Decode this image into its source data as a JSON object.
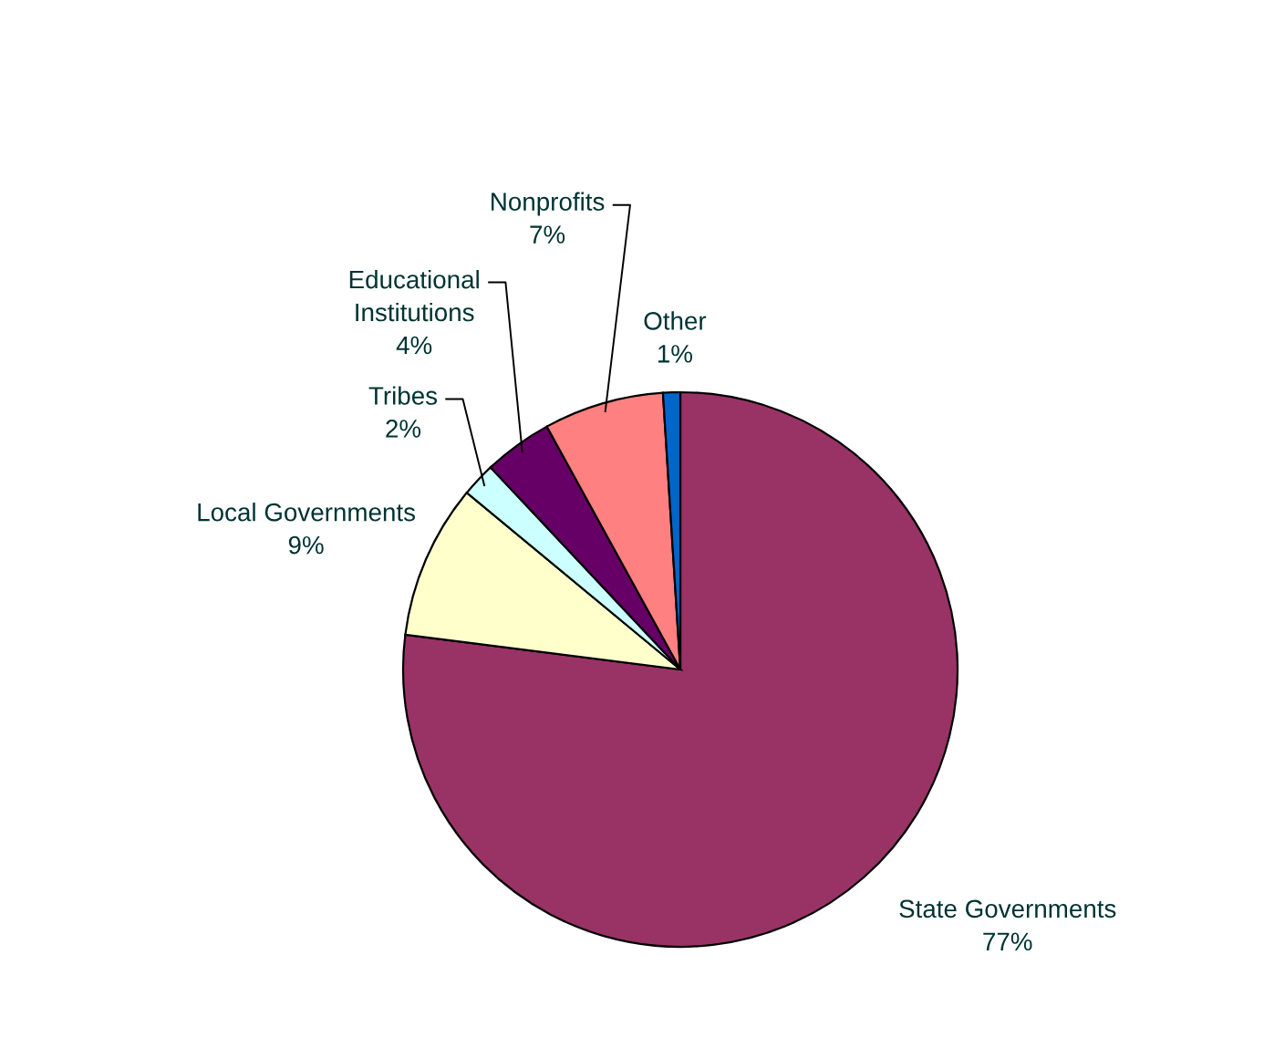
{
  "chart_data": {
    "type": "pie",
    "categories": [
      "State Governments",
      "Local Governments",
      "Tribes",
      "Educational\nInstitutions",
      "Nonprofits",
      "Other"
    ],
    "values": [
      77,
      9,
      2,
      4,
      7,
      1
    ],
    "colors": [
      "#993366",
      "#ffffcc",
      "#ccffff",
      "#660066",
      "#ff8080",
      "#0066cc"
    ],
    "value_labels": [
      "77%",
      "9%",
      "2%",
      "4%",
      "7%",
      "1%"
    ],
    "legend": false
  }
}
